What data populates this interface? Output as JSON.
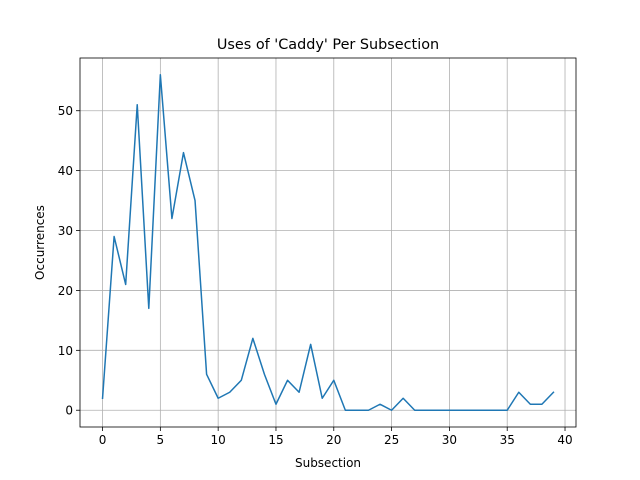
{
  "chart_data": {
    "type": "line",
    "title": "Uses of 'Caddy' Per Subsection",
    "xlabel": "Subsection",
    "ylabel": "Occurrences",
    "xlim": [
      -1.95,
      40.95
    ],
    "ylim": [
      -2.8,
      58.8
    ],
    "xticks": [
      0,
      5,
      10,
      15,
      20,
      25,
      30,
      35,
      40
    ],
    "yticks": [
      0,
      10,
      20,
      30,
      40,
      50
    ],
    "grid": true,
    "series": [
      {
        "color": "#1f77b4",
        "x": [
          0,
          1,
          2,
          3,
          4,
          5,
          6,
          7,
          8,
          9,
          10,
          11,
          12,
          13,
          14,
          15,
          16,
          17,
          18,
          19,
          20,
          21,
          22,
          23,
          24,
          25,
          26,
          27,
          28,
          29,
          30,
          31,
          32,
          33,
          34,
          35,
          36,
          37,
          38,
          39
        ],
        "values": [
          2,
          29,
          21,
          51,
          17,
          56,
          32,
          43,
          35,
          6,
          2,
          3,
          5,
          12,
          6,
          1,
          5,
          3,
          11,
          2,
          5,
          0,
          0,
          0,
          1,
          0,
          2,
          0,
          0,
          0,
          0,
          0,
          0,
          0,
          0,
          0,
          3,
          1,
          1,
          3
        ]
      }
    ]
  }
}
